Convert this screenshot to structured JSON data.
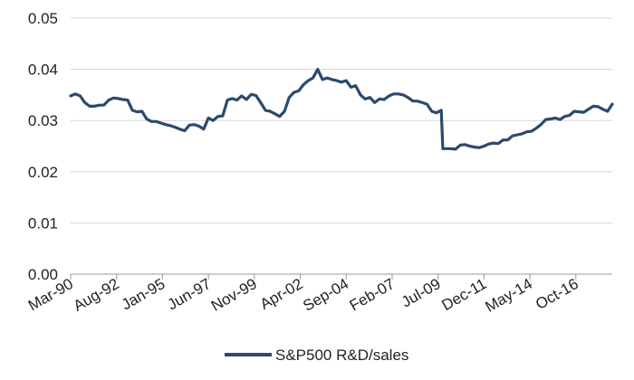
{
  "chart_data": {
    "type": "line",
    "title": "",
    "xlabel": "",
    "ylabel": "",
    "ylim": [
      0,
      0.05
    ],
    "y_ticks": [
      "0.00",
      "0.01",
      "0.02",
      "0.03",
      "0.04",
      "0.05"
    ],
    "x_ticks": [
      "Mar-90",
      "Aug-92",
      "Jan-95",
      "Jun-97",
      "Nov-99",
      "Apr-02",
      "Sep-04",
      "Feb-07",
      "Jul-09",
      "Dec-11",
      "May-14",
      "Oct-16"
    ],
    "grid": "horizontal",
    "legend_position": "bottom-center",
    "line_color": "#2d4a6b",
    "series": [
      {
        "name": "S&P500 R&D/sales",
        "points": [
          [
            "Mar-90",
            0.0348
          ],
          [
            "Jun-90",
            0.0352
          ],
          [
            "Sep-90",
            0.0348
          ],
          [
            "Dec-90",
            0.0335
          ],
          [
            "Mar-91",
            0.0328
          ],
          [
            "Jun-91",
            0.0328
          ],
          [
            "Sep-91",
            0.033
          ],
          [
            "Dec-91",
            0.033
          ],
          [
            "Mar-92",
            0.034
          ],
          [
            "Jun-92",
            0.0344
          ],
          [
            "Sep-92",
            0.0343
          ],
          [
            "Dec-92",
            0.0341
          ],
          [
            "Mar-93",
            0.034
          ],
          [
            "Jun-93",
            0.032
          ],
          [
            "Sep-93",
            0.0317
          ],
          [
            "Dec-93",
            0.0318
          ],
          [
            "Mar-94",
            0.0303
          ],
          [
            "Jun-94",
            0.0298
          ],
          [
            "Sep-94",
            0.0298
          ],
          [
            "Dec-94",
            0.0295
          ],
          [
            "Mar-95",
            0.0292
          ],
          [
            "Jun-95",
            0.029
          ],
          [
            "Sep-95",
            0.0287
          ],
          [
            "Dec-95",
            0.0283
          ],
          [
            "Mar-96",
            0.028
          ],
          [
            "Jun-96",
            0.0291
          ],
          [
            "Sep-96",
            0.0292
          ],
          [
            "Dec-96",
            0.0289
          ],
          [
            "Mar-97",
            0.0283
          ],
          [
            "Jun-97",
            0.0305
          ],
          [
            "Sep-97",
            0.03
          ],
          [
            "Dec-97",
            0.0308
          ],
          [
            "Mar-98",
            0.0309
          ],
          [
            "Jun-98",
            0.034
          ],
          [
            "Sep-98",
            0.0343
          ],
          [
            "Dec-98",
            0.034
          ],
          [
            "Mar-99",
            0.0348
          ],
          [
            "Jun-99",
            0.0341
          ],
          [
            "Sep-99",
            0.0351
          ],
          [
            "Dec-99",
            0.0349
          ],
          [
            "Mar-00",
            0.0335
          ],
          [
            "Jun-00",
            0.032
          ],
          [
            "Sep-00",
            0.0318
          ],
          [
            "Dec-00",
            0.0313
          ],
          [
            "Mar-01",
            0.0308
          ],
          [
            "Jun-01",
            0.0318
          ],
          [
            "Sep-01",
            0.0345
          ],
          [
            "Dec-01",
            0.0355
          ],
          [
            "Mar-02",
            0.0358
          ],
          [
            "Jun-02",
            0.037
          ],
          [
            "Sep-02",
            0.0378
          ],
          [
            "Dec-02",
            0.0383
          ],
          [
            "Mar-03",
            0.04
          ],
          [
            "Jun-03",
            0.038
          ],
          [
            "Sep-03",
            0.0383
          ],
          [
            "Dec-03",
            0.038
          ],
          [
            "Mar-04",
            0.0378
          ],
          [
            "Jun-04",
            0.0375
          ],
          [
            "Sep-04",
            0.0378
          ],
          [
            "Dec-04",
            0.0365
          ],
          [
            "Mar-05",
            0.0368
          ],
          [
            "Jun-05",
            0.035
          ],
          [
            "Sep-05",
            0.0342
          ],
          [
            "Dec-05",
            0.0345
          ],
          [
            "Mar-06",
            0.0335
          ],
          [
            "Jun-06",
            0.0342
          ],
          [
            "Sep-06",
            0.0341
          ],
          [
            "Dec-06",
            0.0348
          ],
          [
            "Mar-07",
            0.0352
          ],
          [
            "Jun-07",
            0.0352
          ],
          [
            "Sep-07",
            0.035
          ],
          [
            "Dec-07",
            0.0345
          ],
          [
            "Mar-08",
            0.0338
          ],
          [
            "Jun-08",
            0.0338
          ],
          [
            "Sep-08",
            0.0335
          ],
          [
            "Dec-08",
            0.0332
          ],
          [
            "Mar-09",
            0.0318
          ],
          [
            "Jun-09",
            0.0315
          ],
          [
            "Sep-09",
            0.032
          ],
          [
            "Oct-09",
            0.0245
          ],
          [
            "Dec-09",
            0.0245
          ],
          [
            "Mar-10",
            0.0245
          ],
          [
            "Jun-10",
            0.0244
          ],
          [
            "Sep-10",
            0.0252
          ],
          [
            "Dec-10",
            0.0253
          ],
          [
            "Mar-11",
            0.025
          ],
          [
            "Jun-11",
            0.0248
          ],
          [
            "Sep-11",
            0.0247
          ],
          [
            "Dec-11",
            0.025
          ],
          [
            "Mar-12",
            0.0254
          ],
          [
            "Jun-12",
            0.0256
          ],
          [
            "Sep-12",
            0.0255
          ],
          [
            "Dec-12",
            0.0262
          ],
          [
            "Mar-13",
            0.0262
          ],
          [
            "Jun-13",
            0.027
          ],
          [
            "Sep-13",
            0.0272
          ],
          [
            "Dec-13",
            0.0274
          ],
          [
            "Mar-14",
            0.0278
          ],
          [
            "Jun-14",
            0.0279
          ],
          [
            "Sep-14",
            0.0285
          ],
          [
            "Dec-14",
            0.0292
          ],
          [
            "Mar-15",
            0.0302
          ],
          [
            "Jun-15",
            0.0303
          ],
          [
            "Sep-15",
            0.0305
          ],
          [
            "Dec-15",
            0.0302
          ],
          [
            "Mar-16",
            0.0308
          ],
          [
            "Jun-16",
            0.031
          ],
          [
            "Sep-16",
            0.0318
          ],
          [
            "Dec-16",
            0.0317
          ],
          [
            "Mar-17",
            0.0316
          ],
          [
            "Jun-17",
            0.0322
          ],
          [
            "Sep-17",
            0.0328
          ],
          [
            "Dec-17",
            0.0327
          ],
          [
            "Mar-18",
            0.0322
          ],
          [
            "Jun-18",
            0.0318
          ],
          [
            "Sep-18",
            0.0332
          ]
        ]
      }
    ]
  }
}
